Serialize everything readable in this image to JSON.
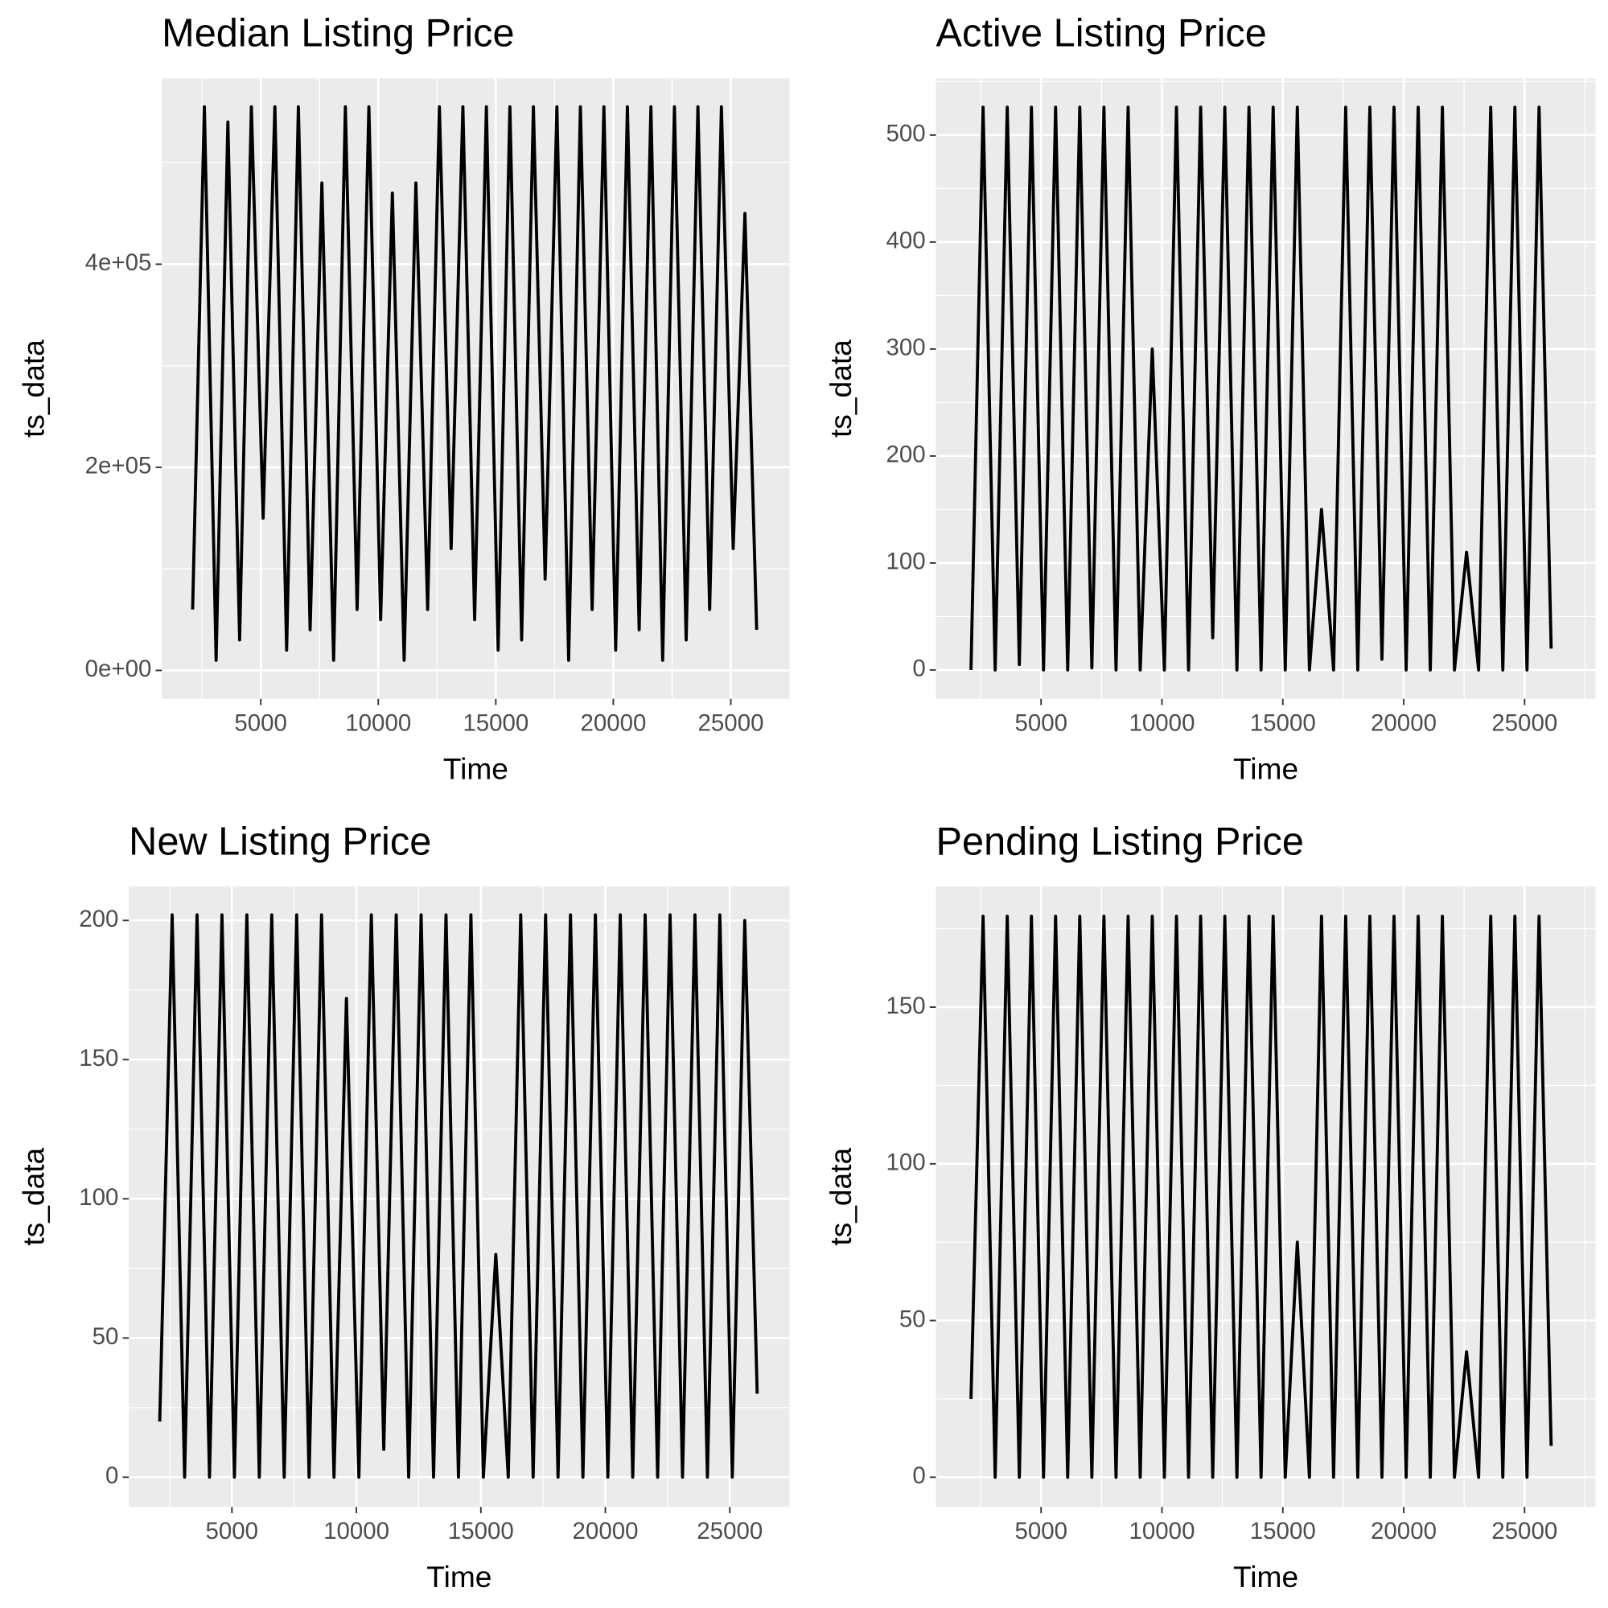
{
  "chart_data": [
    {
      "type": "line",
      "title": "Median Listing Price",
      "x_label": "Time",
      "y_label": "ts_data",
      "color": "#000000",
      "x": [
        2100,
        2600,
        3100,
        3600,
        4100,
        4600,
        5100,
        5600,
        6100,
        6600,
        7100,
        7600,
        8100,
        8600,
        9100,
        9600,
        10100,
        10600,
        11100,
        11600,
        12100,
        12600,
        13100,
        13600,
        14100,
        14600,
        15100,
        15600,
        16100,
        16600,
        17100,
        17600,
        18100,
        18600,
        19100,
        19600,
        20100,
        20600,
        21100,
        21600,
        22100,
        22600,
        23100,
        23600,
        24100,
        24600,
        25100,
        25600,
        26100
      ],
      "values": [
        60000,
        555000,
        10000,
        540000,
        30000,
        555000,
        150000,
        555000,
        20000,
        555000,
        40000,
        480000,
        10000,
        555000,
        60000,
        555000,
        50000,
        470000,
        10000,
        480000,
        60000,
        555000,
        120000,
        555000,
        50000,
        555000,
        20000,
        555000,
        30000,
        555000,
        90000,
        555000,
        10000,
        555000,
        60000,
        555000,
        20000,
        555000,
        40000,
        555000,
        10000,
        555000,
        30000,
        555000,
        60000,
        555000,
        120000,
        450000,
        40000
      ],
      "xlim": [
        790,
        27500
      ],
      "ylim": [
        -28000,
        583000
      ],
      "xticks": [
        5000,
        10000,
        15000,
        20000,
        25000
      ],
      "yticks": [
        {
          "value": 0,
          "label": "0e+00"
        },
        {
          "value": 200000,
          "label": "2e+05"
        },
        {
          "value": 400000,
          "label": "4e+05"
        }
      ],
      "grid": true
    },
    {
      "type": "line",
      "title": "Active Listing Price",
      "x_label": "Time",
      "y_label": "ts_data",
      "color": "#000000",
      "x": [
        2100,
        2600,
        3100,
        3600,
        4100,
        4600,
        5100,
        5600,
        6100,
        6600,
        7100,
        7600,
        8100,
        8600,
        9100,
        9600,
        10100,
        10600,
        11100,
        11600,
        12100,
        12600,
        13100,
        13600,
        14100,
        14600,
        15100,
        15600,
        16100,
        16600,
        17100,
        17600,
        18100,
        18600,
        19100,
        19600,
        20100,
        20600,
        21100,
        21600,
        22100,
        22600,
        23100,
        23600,
        24100,
        24600,
        25100,
        25600,
        26100
      ],
      "values": [
        0,
        526,
        0,
        526,
        5,
        526,
        0,
        526,
        0,
        526,
        2,
        526,
        0,
        526,
        0,
        300,
        0,
        526,
        0,
        526,
        30,
        526,
        0,
        526,
        0,
        526,
        0,
        526,
        0,
        150,
        0,
        526,
        0,
        526,
        10,
        526,
        0,
        526,
        0,
        526,
        0,
        110,
        0,
        526,
        0,
        526,
        0,
        526,
        20
      ],
      "xlim": [
        650,
        27940
      ],
      "ylim": [
        -27,
        553
      ],
      "xticks": [
        5000,
        10000,
        15000,
        20000,
        25000
      ],
      "yticks": [
        0,
        100,
        200,
        300,
        400,
        500
      ],
      "grid": true
    },
    {
      "type": "line",
      "title": "New Listing Price",
      "x_label": "Time",
      "y_label": "ts_data",
      "color": "#000000",
      "x": [
        2100,
        2600,
        3100,
        3600,
        4100,
        4600,
        5100,
        5600,
        6100,
        6600,
        7100,
        7600,
        8100,
        8600,
        9100,
        9600,
        10100,
        10600,
        11100,
        11600,
        12100,
        12600,
        13100,
        13600,
        14100,
        14600,
        15100,
        15600,
        16100,
        16600,
        17100,
        17600,
        18100,
        18600,
        19100,
        19600,
        20100,
        20600,
        21100,
        21600,
        22100,
        22600,
        23100,
        23600,
        24100,
        24600,
        25100,
        25600,
        26100
      ],
      "values": [
        20,
        202,
        0,
        202,
        0,
        202,
        0,
        202,
        0,
        202,
        0,
        202,
        0,
        202,
        0,
        172,
        0,
        202,
        10,
        202,
        0,
        202,
        0,
        202,
        0,
        202,
        0,
        80,
        0,
        202,
        0,
        202,
        0,
        202,
        0,
        202,
        0,
        202,
        0,
        202,
        0,
        202,
        0,
        202,
        0,
        202,
        0,
        200,
        30
      ],
      "xlim": [
        860,
        27400
      ],
      "ylim": [
        -10.7,
        212.2
      ],
      "xticks": [
        5000,
        10000,
        15000,
        20000,
        25000
      ],
      "yticks": [
        0,
        50,
        100,
        150,
        200
      ],
      "grid": true
    },
    {
      "type": "line",
      "title": "Pending Listing Price",
      "x_label": "Time",
      "y_label": "ts_data",
      "color": "#000000",
      "x": [
        2100,
        2600,
        3100,
        3600,
        4100,
        4600,
        5100,
        5600,
        6100,
        6600,
        7100,
        7600,
        8100,
        8600,
        9100,
        9600,
        10100,
        10600,
        11100,
        11600,
        12100,
        12600,
        13100,
        13600,
        14100,
        14600,
        15100,
        15600,
        16100,
        16600,
        17100,
        17600,
        18100,
        18600,
        19100,
        19600,
        20100,
        20600,
        21100,
        21600,
        22100,
        22600,
        23100,
        23600,
        24100,
        24600,
        25100,
        25600,
        26100
      ],
      "values": [
        25,
        179,
        0,
        179,
        0,
        179,
        0,
        179,
        0,
        179,
        0,
        179,
        0,
        179,
        0,
        179,
        0,
        179,
        0,
        179,
        0,
        179,
        0,
        179,
        0,
        179,
        0,
        75,
        0,
        179,
        0,
        179,
        0,
        179,
        0,
        179,
        0,
        179,
        0,
        179,
        0,
        40,
        0,
        179,
        0,
        179,
        0,
        179,
        10
      ],
      "xlim": [
        650,
        27940
      ],
      "ylim": [
        -9.5,
        188.5
      ],
      "xticks": [
        5000,
        10000,
        15000,
        20000,
        25000
      ],
      "yticks": [
        0,
        50,
        100,
        150
      ],
      "grid": true
    }
  ]
}
